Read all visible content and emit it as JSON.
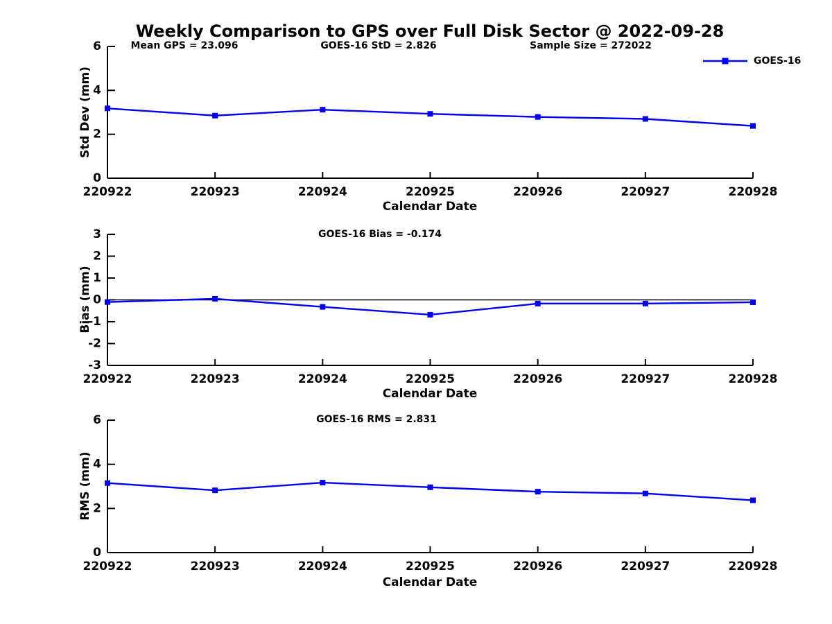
{
  "figure": {
    "title": "Weekly Comparison to GPS over Full Disk Sector @ 2022-09-28",
    "background_color": "#ffffff",
    "series_color": "#0000ee",
    "legend": {
      "label": "GOES-16",
      "position": "top-right",
      "marker": "square"
    }
  },
  "chart_data": [
    {
      "type": "line",
      "name": "std-dev-subplot",
      "categories": [
        "220922",
        "220923",
        "220924",
        "220925",
        "220926",
        "220927",
        "220928"
      ],
      "series": [
        {
          "name": "GOES-16",
          "color": "#0000ee",
          "marker": "square",
          "values": [
            3.18,
            2.85,
            3.12,
            2.93,
            2.79,
            2.7,
            2.38
          ]
        }
      ],
      "xlabel": "Calendar Date",
      "ylabel": "Std Dev (mm)",
      "ylim": [
        0,
        6
      ],
      "yticks": [
        0,
        2,
        4,
        6
      ],
      "grid": false,
      "zero_line": false,
      "annotations": [
        "Mean GPS = 23.096",
        "GOES-16 StD = 2.826",
        "Sample Size = 272022"
      ]
    },
    {
      "type": "line",
      "name": "bias-subplot",
      "categories": [
        "220922",
        "220923",
        "220924",
        "220925",
        "220926",
        "220927",
        "220928"
      ],
      "series": [
        {
          "name": "GOES-16",
          "color": "#0000ee",
          "marker": "square",
          "values": [
            -0.1,
            0.05,
            -0.32,
            -0.68,
            -0.17,
            -0.17,
            -0.11
          ]
        }
      ],
      "xlabel": "Calendar Date",
      "ylabel": "Bias (mm)",
      "ylim": [
        -3,
        3
      ],
      "yticks": [
        -3,
        -2,
        -1,
        0,
        1,
        2,
        3
      ],
      "grid": false,
      "zero_line": true,
      "annotations": [
        "GOES-16 Bias  = -0.174"
      ]
    },
    {
      "type": "line",
      "name": "rms-subplot",
      "categories": [
        "220922",
        "220923",
        "220924",
        "220925",
        "220926",
        "220927",
        "220928"
      ],
      "series": [
        {
          "name": "GOES-16",
          "color": "#0000ee",
          "marker": "square",
          "values": [
            3.15,
            2.82,
            3.17,
            2.96,
            2.76,
            2.68,
            2.37
          ]
        }
      ],
      "xlabel": "Calendar Date",
      "ylabel": "RMS (mm)",
      "ylim": [
        0,
        6
      ],
      "yticks": [
        0,
        2,
        4,
        6
      ],
      "grid": false,
      "zero_line": false,
      "annotations": [
        "GOES-16 RMS = 2.831"
      ]
    }
  ]
}
